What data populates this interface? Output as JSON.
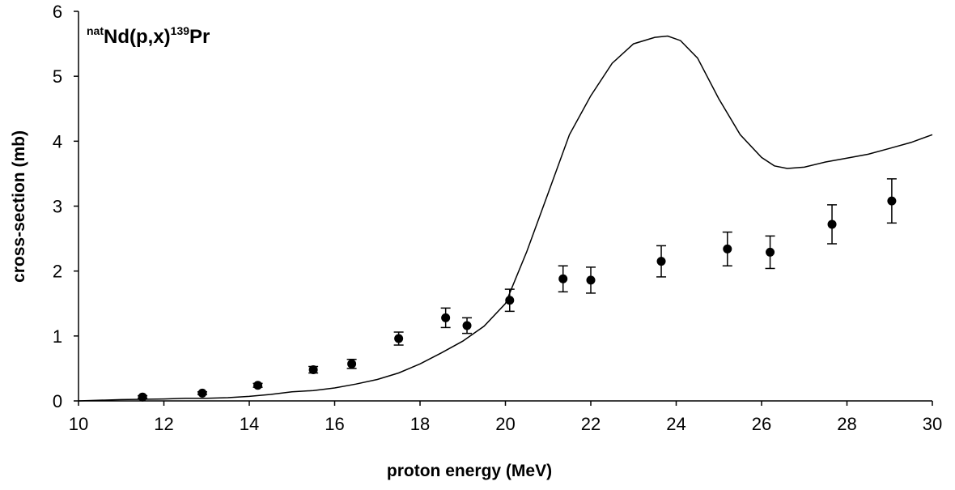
{
  "chart_data": {
    "type": "scatter",
    "annotation": {
      "sup1": "nat",
      "main1": "Nd(p,x)",
      "sup2": "139",
      "main2": "Pr"
    },
    "xlabel": "proton energy (MeV)",
    "ylabel": "cross-section (mb)",
    "xlim": [
      10,
      30
    ],
    "ylim": [
      0,
      6
    ],
    "xticks": [
      10,
      12,
      14,
      16,
      18,
      20,
      22,
      24,
      26,
      28,
      30
    ],
    "yticks": [
      0,
      1,
      2,
      3,
      4,
      5,
      6
    ],
    "grid": false,
    "series": [
      {
        "kind": "points-with-error",
        "color": "#000000",
        "points": [
          {
            "x": 11.5,
            "y": 0.06,
            "err": 0.02
          },
          {
            "x": 12.9,
            "y": 0.12,
            "err": 0.02
          },
          {
            "x": 14.2,
            "y": 0.24,
            "err": 0.03
          },
          {
            "x": 15.5,
            "y": 0.48,
            "err": 0.05
          },
          {
            "x": 16.4,
            "y": 0.57,
            "err": 0.07
          },
          {
            "x": 17.5,
            "y": 0.96,
            "err": 0.1
          },
          {
            "x": 18.6,
            "y": 1.28,
            "err": 0.15
          },
          {
            "x": 19.1,
            "y": 1.16,
            "err": 0.12
          },
          {
            "x": 20.1,
            "y": 1.55,
            "err": 0.17
          },
          {
            "x": 21.35,
            "y": 1.88,
            "err": 0.2
          },
          {
            "x": 22.0,
            "y": 1.86,
            "err": 0.2
          },
          {
            "x": 23.65,
            "y": 2.15,
            "err": 0.24
          },
          {
            "x": 25.2,
            "y": 2.34,
            "err": 0.26
          },
          {
            "x": 26.2,
            "y": 2.29,
            "err": 0.25
          },
          {
            "x": 27.65,
            "y": 2.72,
            "err": 0.3
          },
          {
            "x": 29.05,
            "y": 3.08,
            "err": 0.34
          }
        ]
      },
      {
        "kind": "line",
        "color": "#000000",
        "x": [
          10,
          11,
          12,
          12.5,
          13,
          13.5,
          14,
          14.5,
          15,
          15.5,
          16,
          16.5,
          17,
          17.5,
          18,
          18.5,
          19,
          19.5,
          20,
          20.5,
          21,
          21.5,
          22,
          22.5,
          23,
          23.5,
          23.8,
          24.1,
          24.5,
          25,
          25.5,
          26,
          26.3,
          26.6,
          27,
          27.5,
          28,
          28.5,
          29,
          29.5,
          30
        ],
        "y": [
          0,
          0.02,
          0.03,
          0.04,
          0.04,
          0.05,
          0.07,
          0.1,
          0.14,
          0.16,
          0.2,
          0.26,
          0.33,
          0.43,
          0.57,
          0.74,
          0.92,
          1.15,
          1.5,
          2.3,
          3.2,
          4.1,
          4.7,
          5.2,
          5.5,
          5.6,
          5.62,
          5.55,
          5.28,
          4.65,
          4.1,
          3.75,
          3.62,
          3.58,
          3.6,
          3.68,
          3.74,
          3.8,
          3.89,
          3.98,
          4.1
        ]
      }
    ]
  }
}
